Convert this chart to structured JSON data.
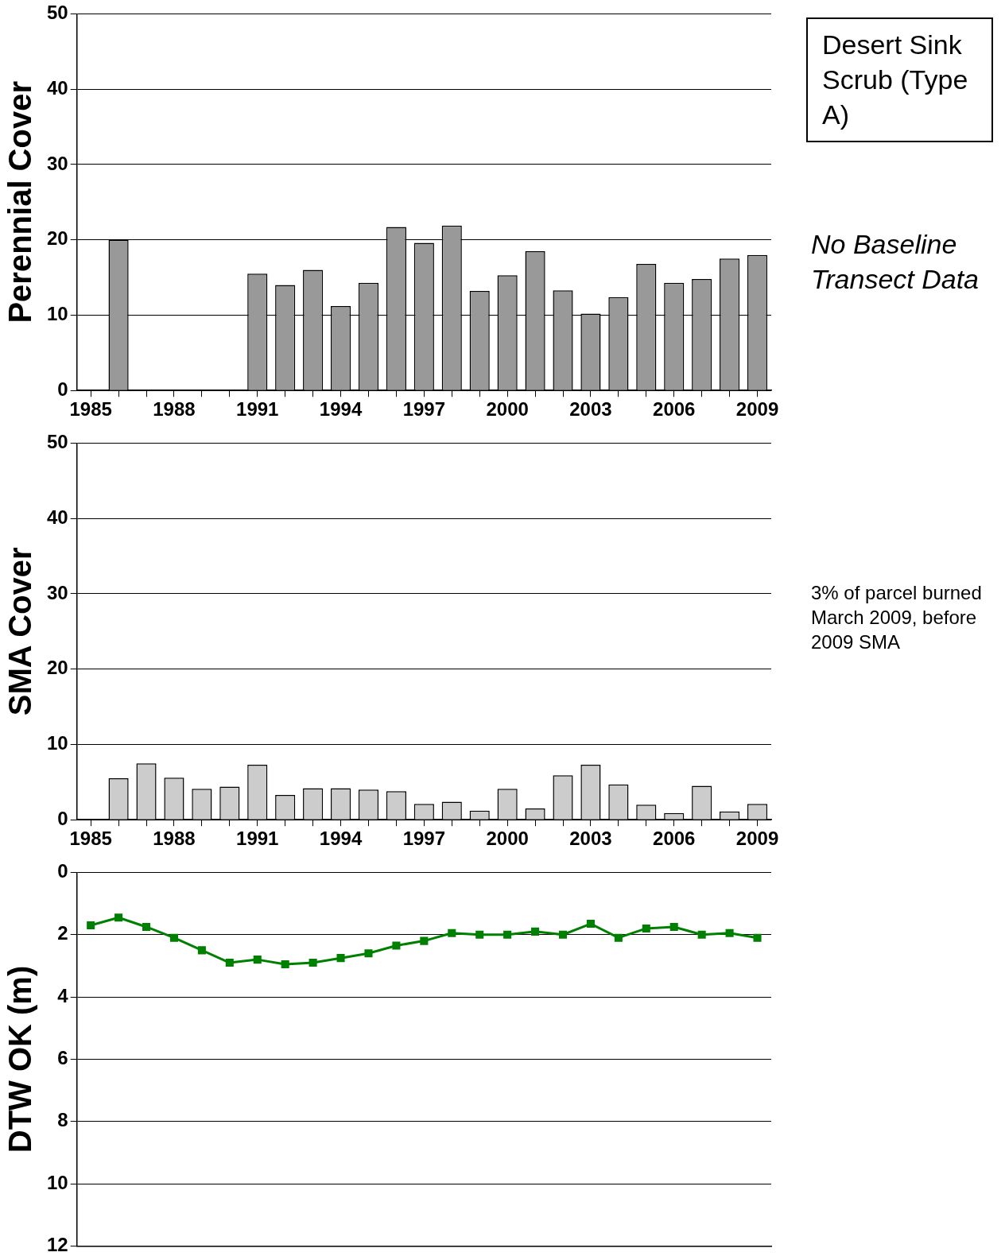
{
  "chart_data": [
    {
      "type": "bar",
      "ylabel": "Perennial Cover",
      "categories": [
        "1985",
        null,
        null,
        "1988",
        null,
        null,
        "1991",
        null,
        null,
        "1994",
        null,
        null,
        "1997",
        null,
        null,
        "2000",
        null,
        null,
        "2003",
        null,
        null,
        "2006",
        null,
        null,
        "2009"
      ],
      "values": [
        null,
        20,
        null,
        null,
        null,
        null,
        15.5,
        14,
        16,
        11.2,
        14.3,
        21.7,
        19.6,
        21.9,
        13.2,
        15.3,
        18.5,
        13.3,
        10.2,
        12.4,
        16.8,
        14.3,
        14.8,
        17.5,
        18
      ],
      "color": "#999999",
      "ylim": [
        0,
        50
      ],
      "yticks": [
        0,
        10,
        20,
        30,
        40,
        50
      ],
      "grid": "y",
      "annotations": [
        "Desert Sink Scrub (Type A)",
        "No Baseline Transect Data"
      ]
    },
    {
      "type": "bar",
      "ylabel": "SMA Cover",
      "categories": [
        "1985",
        null,
        null,
        "1988",
        null,
        null,
        "1991",
        null,
        null,
        "1994",
        null,
        null,
        "1997",
        null,
        null,
        "2000",
        null,
        null,
        "2003",
        null,
        null,
        "2006",
        null,
        null,
        "2009"
      ],
      "values": [
        null,
        5.5,
        7.5,
        5.6,
        4.1,
        4.4,
        7.3,
        3.3,
        4.2,
        4.2,
        4.0,
        3.8,
        2.1,
        2.4,
        1.2,
        4.1,
        1.5,
        5.9,
        7.3,
        4.7,
        2.0,
        0.9,
        4.5,
        1.1,
        2.1
      ],
      "color": "#cccccc",
      "ylim": [
        0,
        50
      ],
      "yticks": [
        0,
        10,
        20,
        30,
        40,
        50
      ],
      "grid": "y",
      "annotations": [
        "3% of parcel burned March 2009, before 2009 SMA"
      ]
    },
    {
      "type": "line",
      "ylabel": "DTW OK (m)",
      "categories": [
        null,
        null,
        null,
        null,
        null,
        null,
        null,
        null,
        null,
        null,
        null,
        null,
        null,
        null,
        null,
        null,
        null,
        null,
        null,
        null,
        null,
        null,
        null,
        null,
        null
      ],
      "values": [
        1.7,
        1.45,
        1.75,
        2.1,
        2.5,
        2.9,
        2.8,
        2.95,
        2.9,
        2.75,
        2.6,
        2.35,
        2.2,
        1.95,
        2.0,
        2.0,
        1.9,
        2.0,
        1.65,
        2.1,
        1.8,
        1.75,
        2.0,
        1.95,
        2.1
      ],
      "color": "#008000",
      "marker": "square",
      "ylim": [
        12,
        0
      ],
      "yticks": [
        0,
        2,
        4,
        6,
        8,
        10,
        12
      ],
      "grid": "y",
      "tick_labels": "y"
    }
  ]
}
